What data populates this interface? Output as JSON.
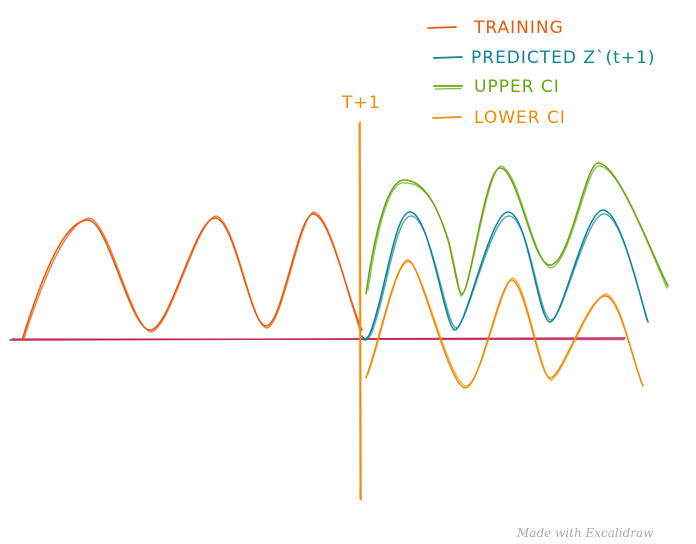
{
  "legend": {
    "items": [
      {
        "label": "TRAINING",
        "color": "#e8590c"
      },
      {
        "label": "PREDICTED Z`(t+1)",
        "color": "#0c8599"
      },
      {
        "label": "UPPER CI",
        "color": "#66a80f"
      },
      {
        "label": "LOWER CI",
        "color": "#f08c00"
      }
    ]
  },
  "marker": {
    "label": "T+1",
    "color": "#f08c00"
  },
  "baseline": {
    "color": "#c2255c"
  },
  "footer": {
    "credit": "Made with Excalidraw"
  }
}
